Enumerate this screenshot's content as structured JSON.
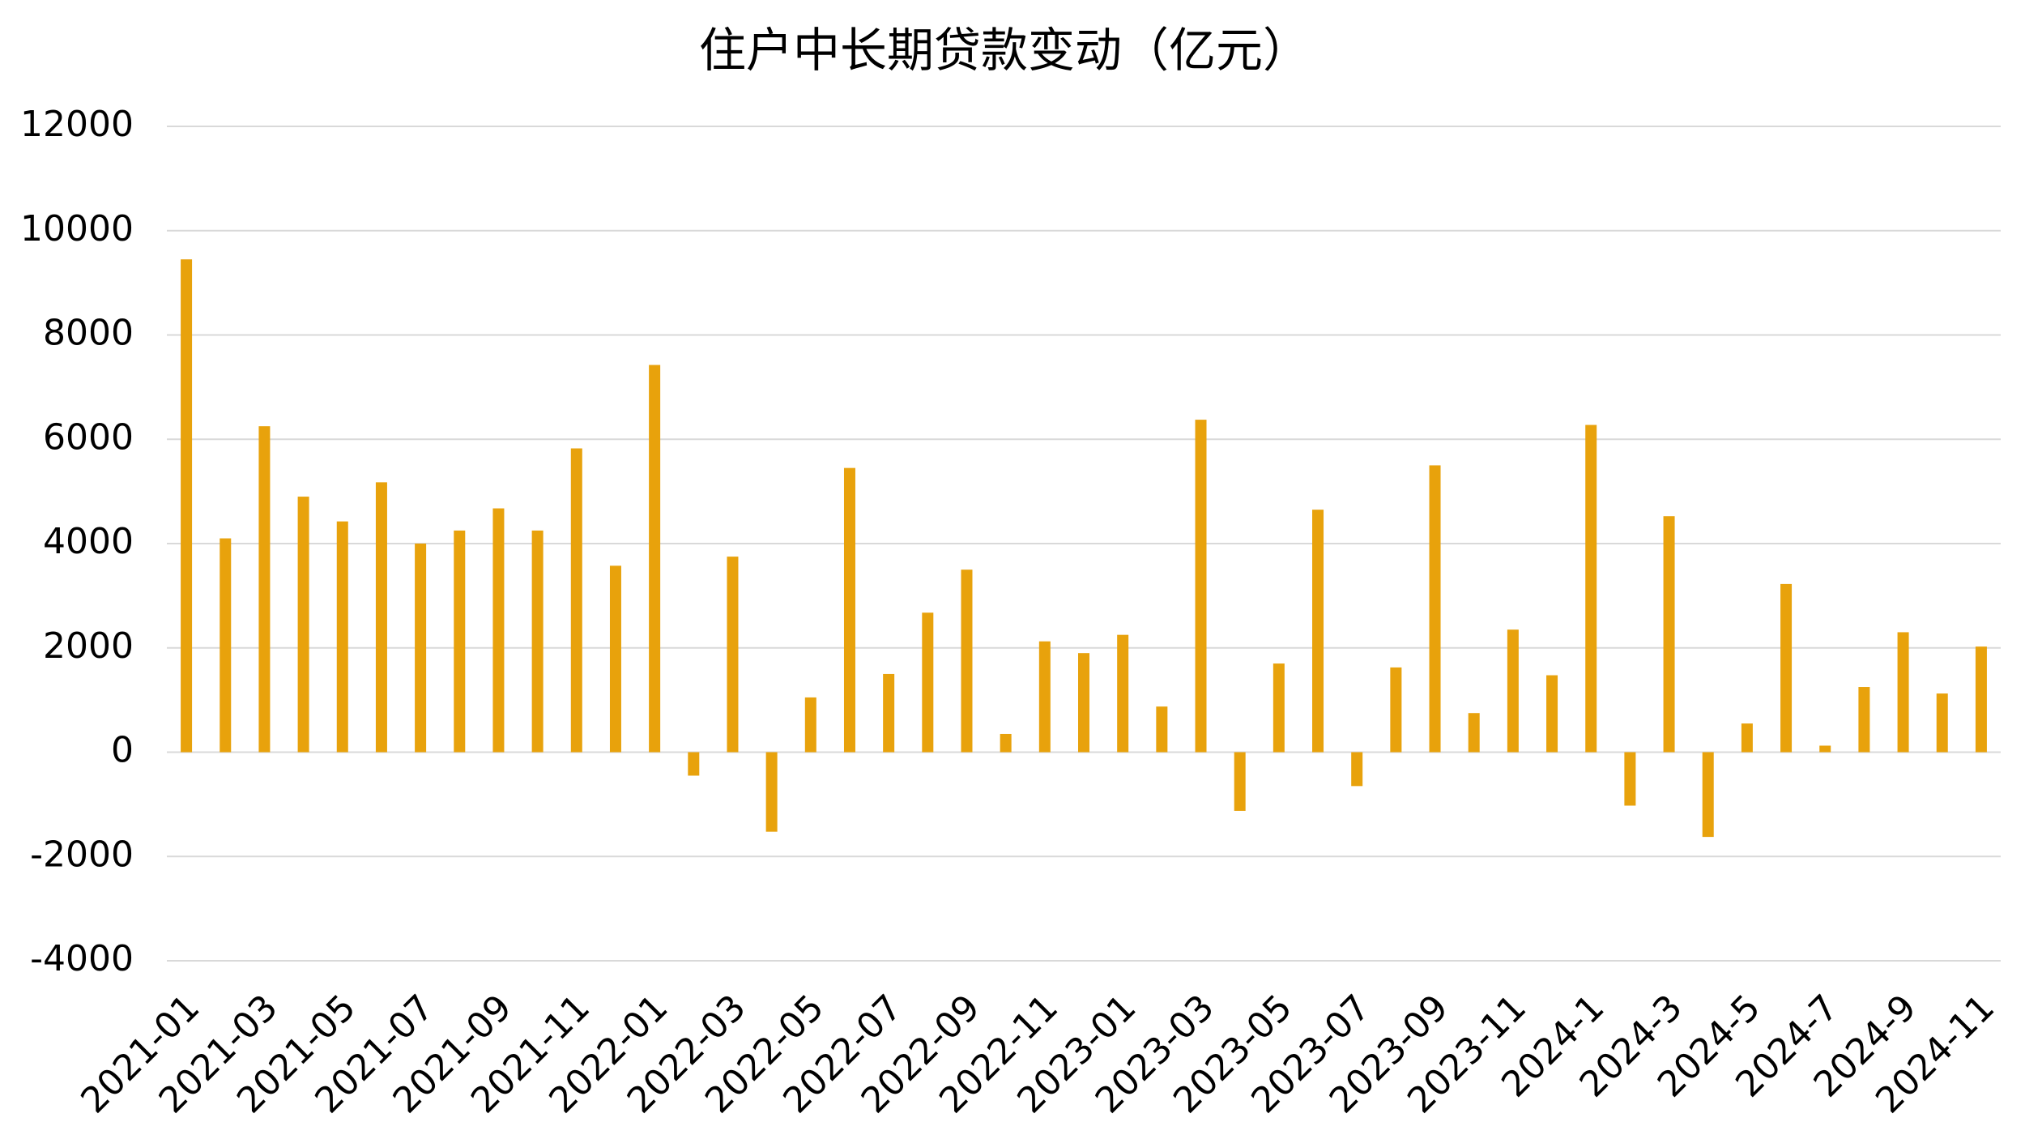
{
  "chart_data": {
    "type": "bar",
    "title": "住户中长期贷款变动（亿元）",
    "categories": [
      "2021-01",
      null,
      "2021-03",
      null,
      "2021-05",
      null,
      "2021-07",
      null,
      "2021-09",
      null,
      "2021-11",
      null,
      "2022-01",
      null,
      "2022-03",
      null,
      "2022-05",
      null,
      "2022-07",
      null,
      "2022-09",
      null,
      "2022-11",
      null,
      "2023-01",
      null,
      "2023-03",
      null,
      "2023-05",
      null,
      "2023-07",
      null,
      "2023-09",
      null,
      "2023-11",
      null,
      "2024-1",
      null,
      "2024-3",
      null,
      "2024-5",
      null,
      "2024-7",
      null,
      "2024-9",
      null,
      "2024-11"
    ],
    "values": [
      9450,
      4100,
      6250,
      4900,
      4425,
      5175,
      4000,
      4250,
      4675,
      4250,
      5825,
      3575,
      7425,
      -450,
      3750,
      -1525,
      1050,
      5450,
      1500,
      2675,
      3500,
      350,
      2125,
      1900,
      2250,
      875,
      6375,
      -1125,
      1700,
      4650,
      -650,
      1625,
      5500,
      750,
      2350,
      1475,
      6275,
      -1025,
      4525,
      -1625,
      550,
      3225,
      125,
      1250,
      2300,
      1125,
      2025
    ],
    "color": "#E8A20C",
    "ylim": [
      -4000,
      12000
    ],
    "yticks": [
      -4000,
      -2000,
      0,
      2000,
      4000,
      6000,
      8000,
      10000,
      12000
    ],
    "grid": true
  }
}
